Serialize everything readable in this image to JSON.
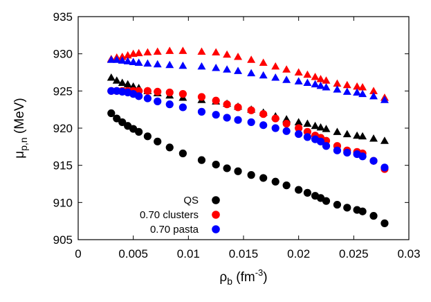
{
  "chart_data": {
    "type": "scatter",
    "title": "",
    "xlabel": {
      "base": "ρ",
      "sub": "b",
      "pre_unit": " (fm",
      "sup": "-3",
      "post_unit": ")"
    },
    "ylabel": {
      "base": "μ",
      "sub": "p,n",
      "unit": " (MeV)"
    },
    "xlim": [
      0,
      0.03
    ],
    "ylim": [
      905,
      935
    ],
    "xticks": [
      0,
      0.005,
      0.01,
      0.015,
      0.02,
      0.025,
      0.03
    ],
    "xtick_labels": [
      "0",
      "0.005",
      "0.01",
      "0.015",
      "0.02",
      "0.025",
      "0.03"
    ],
    "yticks": [
      905,
      910,
      915,
      920,
      925,
      930,
      935
    ],
    "ytick_labels": [
      "905",
      "910",
      "915",
      "920",
      "925",
      "930",
      "935"
    ],
    "grid": false,
    "legend_placement": "bottom-center",
    "series": [
      {
        "name": "QS",
        "color": "#000000",
        "marker": "circle",
        "points": [
          [
            0.003,
            922.0
          ],
          [
            0.0035,
            921.3
          ],
          [
            0.004,
            920.8
          ],
          [
            0.0045,
            920.3
          ],
          [
            0.005,
            919.9
          ],
          [
            0.0055,
            919.5
          ],
          [
            0.0063,
            918.9
          ],
          [
            0.0072,
            918.2
          ],
          [
            0.0083,
            917.4
          ],
          [
            0.0095,
            916.6
          ],
          [
            0.0112,
            915.7
          ],
          [
            0.0125,
            915.1
          ],
          [
            0.0135,
            914.6
          ],
          [
            0.0145,
            914.2
          ],
          [
            0.0157,
            913.7
          ],
          [
            0.0168,
            913.3
          ],
          [
            0.0179,
            912.8
          ],
          [
            0.0189,
            912.3
          ],
          [
            0.02,
            911.7
          ],
          [
            0.0208,
            911.3
          ],
          [
            0.0215,
            910.9
          ],
          [
            0.022,
            910.6
          ],
          [
            0.0225,
            910.2
          ],
          [
            0.0235,
            909.7
          ],
          [
            0.0244,
            909.3
          ],
          [
            0.0253,
            909.0
          ],
          [
            0.0258,
            908.8
          ],
          [
            0.0268,
            908.2
          ],
          [
            0.0278,
            907.2
          ]
        ]
      },
      {
        "name": "QS",
        "color": "#000000",
        "marker": "triangle",
        "points": [
          [
            0.003,
            926.8
          ],
          [
            0.0035,
            926.4
          ],
          [
            0.004,
            926.1
          ],
          [
            0.0045,
            925.9
          ],
          [
            0.005,
            925.6
          ],
          [
            0.0055,
            925.4
          ],
          [
            0.0063,
            925.0
          ],
          [
            0.0072,
            924.7
          ],
          [
            0.0083,
            924.4
          ],
          [
            0.0095,
            924.1
          ],
          [
            0.0112,
            923.8
          ],
          [
            0.0125,
            923.6
          ],
          [
            0.0135,
            923.3
          ],
          [
            0.0145,
            922.9
          ],
          [
            0.0157,
            922.5
          ],
          [
            0.0168,
            922.1
          ],
          [
            0.0179,
            921.6
          ],
          [
            0.0189,
            921.2
          ],
          [
            0.02,
            920.8
          ],
          [
            0.0208,
            920.6
          ],
          [
            0.0215,
            920.3
          ],
          [
            0.022,
            920.1
          ],
          [
            0.0225,
            919.9
          ],
          [
            0.0235,
            919.5
          ],
          [
            0.0244,
            919.2
          ],
          [
            0.0253,
            919.0
          ],
          [
            0.0258,
            918.9
          ],
          [
            0.0268,
            918.6
          ],
          [
            0.0278,
            918.3
          ]
        ]
      },
      {
        "name": "0.70 clusters",
        "color": "#ff0000",
        "marker": "circle",
        "points": [
          [
            0.003,
            925.0
          ],
          [
            0.0035,
            925.0
          ],
          [
            0.004,
            925.0
          ],
          [
            0.0045,
            925.0
          ],
          [
            0.005,
            925.0
          ],
          [
            0.0055,
            925.0
          ],
          [
            0.0063,
            925.0
          ],
          [
            0.0072,
            924.9
          ],
          [
            0.0083,
            924.8
          ],
          [
            0.0095,
            924.6
          ],
          [
            0.0112,
            924.2
          ],
          [
            0.0125,
            923.7
          ],
          [
            0.0135,
            923.2
          ],
          [
            0.0145,
            922.8
          ],
          [
            0.0157,
            922.4
          ],
          [
            0.0168,
            921.9
          ],
          [
            0.0179,
            921.3
          ],
          [
            0.0189,
            920.6
          ],
          [
            0.02,
            920.0
          ],
          [
            0.0208,
            919.5
          ],
          [
            0.0215,
            919.0
          ],
          [
            0.022,
            918.7
          ],
          [
            0.0225,
            918.3
          ],
          [
            0.0235,
            917.6
          ],
          [
            0.0244,
            917.0
          ],
          [
            0.0253,
            916.8
          ],
          [
            0.0258,
            916.6
          ],
          [
            0.0268,
            915.6
          ],
          [
            0.0278,
            914.5
          ]
        ]
      },
      {
        "name": "0.70 clusters",
        "color": "#ff0000",
        "marker": "triangle",
        "points": [
          [
            0.003,
            929.3
          ],
          [
            0.0035,
            929.5
          ],
          [
            0.004,
            929.6
          ],
          [
            0.0045,
            929.8
          ],
          [
            0.005,
            930.0
          ],
          [
            0.0055,
            930.1
          ],
          [
            0.0063,
            930.2
          ],
          [
            0.0072,
            930.3
          ],
          [
            0.0083,
            930.4
          ],
          [
            0.0095,
            930.4
          ],
          [
            0.0112,
            930.3
          ],
          [
            0.0125,
            930.2
          ],
          [
            0.0135,
            929.9
          ],
          [
            0.0145,
            929.6
          ],
          [
            0.0157,
            929.2
          ],
          [
            0.0168,
            928.8
          ],
          [
            0.0179,
            928.3
          ],
          [
            0.0189,
            927.9
          ],
          [
            0.02,
            927.5
          ],
          [
            0.0208,
            927.2
          ],
          [
            0.0215,
            926.9
          ],
          [
            0.022,
            926.6
          ],
          [
            0.0225,
            926.4
          ],
          [
            0.0235,
            926.0
          ],
          [
            0.0244,
            925.8
          ],
          [
            0.0253,
            925.6
          ],
          [
            0.0258,
            925.5
          ],
          [
            0.0268,
            925.0
          ],
          [
            0.0278,
            924.1
          ]
        ]
      },
      {
        "name": "0.70 pasta",
        "color": "#0000ff",
        "marker": "circle",
        "points": [
          [
            0.003,
            925.0
          ],
          [
            0.0035,
            925.0
          ],
          [
            0.004,
            924.9
          ],
          [
            0.0045,
            924.8
          ],
          [
            0.005,
            924.6
          ],
          [
            0.0055,
            924.3
          ],
          [
            0.0063,
            924.0
          ],
          [
            0.0072,
            923.6
          ],
          [
            0.0083,
            923.2
          ],
          [
            0.0095,
            922.8
          ],
          [
            0.0112,
            922.2
          ],
          [
            0.0125,
            921.8
          ],
          [
            0.0135,
            921.4
          ],
          [
            0.0145,
            921.1
          ],
          [
            0.0157,
            920.8
          ],
          [
            0.0168,
            920.4
          ],
          [
            0.0179,
            920.0
          ],
          [
            0.0189,
            919.6
          ],
          [
            0.02,
            919.2
          ],
          [
            0.0208,
            918.8
          ],
          [
            0.0215,
            918.5
          ],
          [
            0.022,
            918.2
          ],
          [
            0.0225,
            917.6
          ],
          [
            0.0235,
            917.0
          ],
          [
            0.0244,
            916.7
          ],
          [
            0.0253,
            916.5
          ],
          [
            0.0258,
            916.2
          ],
          [
            0.0268,
            915.6
          ],
          [
            0.0278,
            914.7
          ]
        ]
      },
      {
        "name": "0.70 pasta",
        "color": "#0000ff",
        "marker": "triangle",
        "points": [
          [
            0.003,
            929.2
          ],
          [
            0.0035,
            929.2
          ],
          [
            0.004,
            929.1
          ],
          [
            0.0045,
            929.0
          ],
          [
            0.005,
            928.9
          ],
          [
            0.0055,
            928.8
          ],
          [
            0.0063,
            928.7
          ],
          [
            0.0072,
            928.6
          ],
          [
            0.0083,
            928.5
          ],
          [
            0.0095,
            928.4
          ],
          [
            0.0112,
            928.3
          ],
          [
            0.0125,
            928.1
          ],
          [
            0.0135,
            927.9
          ],
          [
            0.0145,
            927.7
          ],
          [
            0.0157,
            927.4
          ],
          [
            0.0168,
            927.1
          ],
          [
            0.0179,
            926.8
          ],
          [
            0.0189,
            926.5
          ],
          [
            0.02,
            926.3
          ],
          [
            0.0208,
            926.1
          ],
          [
            0.0215,
            925.9
          ],
          [
            0.022,
            925.7
          ],
          [
            0.0225,
            925.5
          ],
          [
            0.0235,
            925.2
          ],
          [
            0.0244,
            924.9
          ],
          [
            0.0253,
            924.8
          ],
          [
            0.0258,
            924.6
          ],
          [
            0.0268,
            924.3
          ],
          [
            0.0278,
            923.8
          ]
        ]
      }
    ],
    "legend": [
      {
        "label": "QS",
        "color": "#000000"
      },
      {
        "label": "0.70 clusters",
        "color": "#ff0000"
      },
      {
        "label": "0.70 pasta",
        "color": "#0000ff"
      }
    ]
  }
}
